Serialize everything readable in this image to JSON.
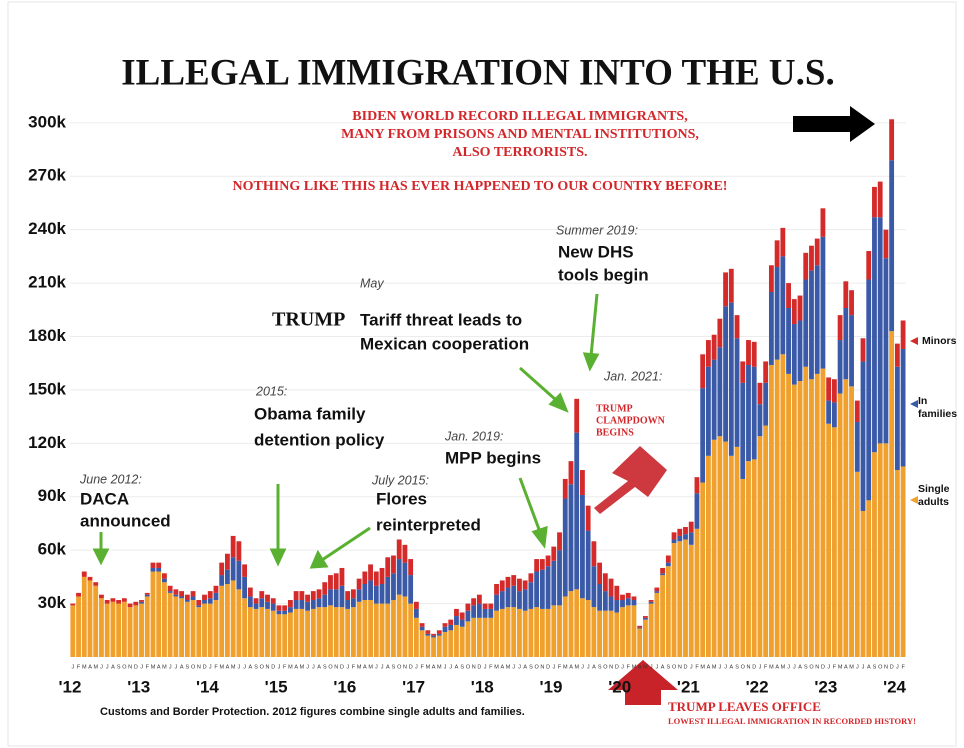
{
  "chart_data": {
    "type": "stacked-bar",
    "title": "ILLEGAL IMMIGRATION INTO THE U.S.",
    "subtitle": [
      "BIDEN WORLD RECORD ILLEGAL IMMIGRANTS,",
      "MANY FROM PRISONS AND MENTAL INSTITUTIONS,",
      "ALSO TERRORISTS.",
      "NOTHING LIKE THIS HAS EVER HAPPENED TO OUR COUNTRY BEFORE!"
    ],
    "source": "Customs and Border Protection. 2012 figures combine single adults and families.",
    "footnote": [
      "TRUMP LEAVES OFFICE",
      "LOWEST ILLEGAL IMMIGRATION IN RECORDED HISTORY!"
    ],
    "annotations": [
      "June 2012:",
      "DACA",
      "announced",
      "2015:",
      "Obama family",
      "detention policy",
      "July 2015:",
      "Flores",
      "reinterpreted",
      "May",
      "TRUMP",
      "Tariff threat leads to",
      "Mexican cooperation",
      "Jan. 2019:",
      "MPP begins",
      "Summer 2019:",
      "New DHS",
      "tools begin",
      "Jan. 2021:",
      "TRUMP",
      "CLAMPDOWN",
      "BEGINS"
    ],
    "year_labels": [
      "'12",
      "'13",
      "'14",
      "'15",
      "'16",
      "'17",
      "'18",
      "'19",
      "'20",
      "'21",
      "'22",
      "'23",
      "'24"
    ],
    "categories": [
      "J",
      "F",
      "M",
      "A",
      "M",
      "J",
      "J",
      "A",
      "S",
      "O",
      "N",
      "D",
      "J",
      "F",
      "M",
      "A",
      "M",
      "J",
      "J",
      "A",
      "S",
      "O",
      "N",
      "D",
      "J",
      "F",
      "M",
      "A",
      "M",
      "J",
      "J",
      "A",
      "S",
      "O",
      "N",
      "D",
      "J",
      "F",
      "M",
      "A",
      "M",
      "J",
      "J",
      "A",
      "S",
      "O",
      "N",
      "D",
      "J",
      "F",
      "M",
      "A",
      "M",
      "J",
      "J",
      "A",
      "S",
      "O",
      "N",
      "D",
      "J",
      "F",
      "M",
      "A",
      "M",
      "J",
      "J",
      "A",
      "S",
      "O",
      "N",
      "D",
      "J",
      "F",
      "M",
      "A",
      "M",
      "J",
      "J",
      "A",
      "S",
      "O",
      "N",
      "D",
      "J",
      "F",
      "M",
      "A",
      "M",
      "J",
      "J",
      "A",
      "S",
      "O",
      "N",
      "D",
      "J",
      "F",
      "M",
      "A",
      "M",
      "J",
      "J",
      "A",
      "S",
      "O",
      "N",
      "D",
      "J",
      "F",
      "M",
      "A",
      "M",
      "J",
      "J",
      "A",
      "S",
      "O",
      "N",
      "D",
      "J",
      "F",
      "M",
      "A",
      "M",
      "J",
      "J",
      "A",
      "S",
      "O",
      "N",
      "D",
      "J",
      "F",
      "M",
      "A",
      "M",
      "J",
      "J",
      "A",
      "S",
      "O",
      "N",
      "D",
      "J",
      "F"
    ],
    "series": [
      {
        "name": "Single adults",
        "color": "#f0a02c",
        "values": [
          29,
          34,
          45,
          43,
          40,
          33,
          30,
          31,
          30,
          31,
          28,
          29,
          30,
          34,
          48,
          48,
          42,
          36,
          34,
          33,
          31,
          32,
          28,
          30,
          30,
          32,
          40,
          41,
          43,
          38,
          33,
          28,
          27,
          28,
          27,
          26,
          24,
          24,
          25,
          27,
          27,
          26,
          27,
          28,
          28,
          29,
          28,
          28,
          27,
          28,
          31,
          32,
          32,
          30,
          30,
          30,
          32,
          35,
          34,
          30,
          22,
          15,
          12,
          11,
          12,
          14,
          15,
          18,
          17,
          20,
          22,
          22,
          22,
          22,
          26,
          27,
          28,
          28,
          27,
          26,
          27,
          28,
          27,
          27,
          29,
          29,
          34,
          37,
          38,
          33,
          32,
          28,
          26,
          26,
          26,
          25,
          28,
          29,
          29,
          16,
          21,
          30,
          36,
          46,
          51,
          64,
          65,
          66,
          63,
          72,
          98,
          113,
          122,
          124,
          121,
          113,
          118,
          100,
          110,
          111,
          124,
          130,
          164,
          167,
          170,
          159,
          153,
          155,
          163,
          156,
          159,
          162,
          131,
          129,
          148,
          156,
          152,
          104,
          82,
          88,
          115,
          120,
          120,
          183,
          105,
          107
        ]
      },
      {
        "name": "In families",
        "color": "#3a5aa8",
        "values": [
          0,
          0,
          0,
          0,
          0,
          0,
          0,
          0,
          0,
          0,
          0,
          0,
          1,
          1,
          2,
          2,
          2,
          1,
          1,
          1,
          1,
          2,
          1,
          2,
          3,
          4,
          6,
          8,
          13,
          16,
          12,
          6,
          3,
          5,
          4,
          4,
          2,
          2,
          3,
          5,
          5,
          5,
          5,
          5,
          7,
          9,
          10,
          12,
          5,
          5,
          7,
          9,
          11,
          10,
          11,
          15,
          15,
          20,
          19,
          16,
          5,
          2,
          1,
          1,
          1,
          3,
          3,
          5,
          4,
          6,
          7,
          8,
          5,
          5,
          9,
          10,
          11,
          12,
          10,
          12,
          15,
          20,
          22,
          24,
          25,
          31,
          55,
          60,
          88,
          58,
          39,
          23,
          15,
          11,
          8,
          7,
          4,
          4,
          3,
          0.5,
          1,
          1,
          1,
          1,
          2,
          2,
          3,
          3,
          7,
          20,
          53,
          50,
          45,
          50,
          76,
          86,
          61,
          54,
          54,
          52,
          18,
          24,
          41,
          52,
          55,
          37,
          34,
          34,
          49,
          61,
          61,
          74,
          13,
          14,
          30,
          40,
          40,
          28,
          84,
          124,
          132,
          127,
          104,
          96,
          58,
          66
        ]
      },
      {
        "name": "Minors",
        "color": "#d42a2a",
        "values": [
          1,
          2,
          3,
          2,
          2,
          2,
          2,
          2,
          2,
          2,
          2,
          2,
          1,
          1,
          3,
          3,
          3,
          3,
          3,
          3,
          3,
          3,
          3,
          3,
          4,
          4,
          7,
          9,
          12,
          11,
          7,
          5,
          3,
          4,
          4,
          3,
          3,
          3,
          4,
          5,
          5,
          4,
          5,
          5,
          7,
          8,
          9,
          10,
          5,
          5,
          6,
          7,
          9,
          8,
          9,
          11,
          10,
          11,
          10,
          9,
          4,
          2,
          2,
          1,
          2,
          2,
          3,
          4,
          4,
          4,
          4,
          5,
          3,
          3,
          6,
          6,
          6,
          6,
          7,
          5,
          5,
          7,
          6,
          6,
          8,
          10,
          11,
          13,
          19,
          14,
          14,
          14,
          12,
          10,
          10,
          8,
          3,
          3,
          2,
          1,
          1,
          1,
          2,
          3,
          4,
          4,
          4,
          4,
          6,
          9,
          19,
          15,
          14,
          16,
          19,
          19,
          13,
          12,
          14,
          14,
          12,
          12,
          15,
          15,
          16,
          14,
          14,
          14,
          15,
          14,
          15,
          16,
          13,
          13,
          14,
          15,
          14,
          12,
          13,
          16,
          17,
          20,
          16,
          23,
          13,
          16
        ]
      }
    ],
    "ylim": [
      0,
      360
    ],
    "yticks": [
      {
        "value": 30,
        "label": "30k"
      },
      {
        "value": 60,
        "label": "60k"
      },
      {
        "value": 90,
        "label": "90k"
      },
      {
        "value": 120,
        "label": "120k"
      },
      {
        "value": 150,
        "label": "150k"
      },
      {
        "value": 180,
        "label": "180k"
      },
      {
        "value": 210,
        "label": "210k"
      },
      {
        "value": 240,
        "label": "240k"
      },
      {
        "value": 270,
        "label": "270k"
      },
      {
        "value": 300,
        "label": "300k"
      }
    ],
    "grid": true
  }
}
